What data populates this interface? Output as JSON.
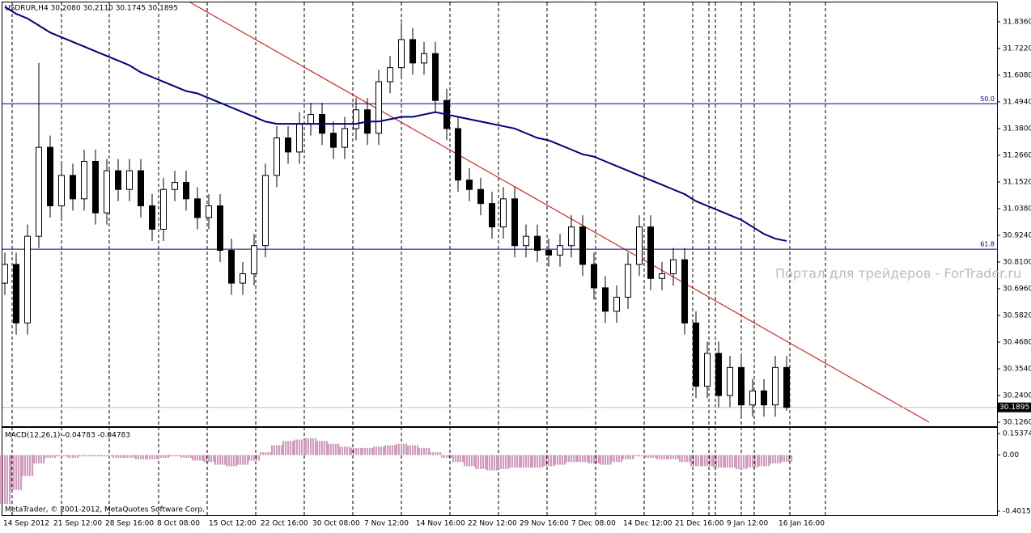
{
  "chart_data": {
    "type": "candlestick",
    "title": "USDRUR,H4  30.2080 30.2110 30.1745 30.1895",
    "watermark": "Портал для трейдеров - ForTrader.ru",
    "footer": "MetaTrader, © 2001-2012, MetaQuotes Software Corp.",
    "time_labels": [
      "14 Sep 2012",
      "21 Sep 12:00",
      "28 Sep 16:00",
      "8 Oct 08:00",
      "15 Oct 12:00",
      "22 Oct 16:00",
      "30 Oct 08:00",
      "7 Nov 12:00",
      "14 Nov 16:00",
      "22 Nov 12:00",
      "29 Nov 16:00",
      "7 Dec 08:00",
      "14 Dec 12:00",
      "21 Dec 16:00",
      "9 Jan 12:00",
      "16 Jan 16:00"
    ],
    "ylim": [
      30.109,
      31.922
    ],
    "yticks": [
      {
        "value": 31.836,
        "label": "31.8360"
      },
      {
        "value": 31.722,
        "label": "31.7220"
      },
      {
        "value": 31.608,
        "label": "31.6080"
      },
      {
        "value": 31.494,
        "label": "31.4940"
      },
      {
        "value": 31.38,
        "label": "31.3800"
      },
      {
        "value": 31.266,
        "label": "31.2660"
      },
      {
        "value": 31.152,
        "label": "31.1520"
      },
      {
        "value": 31.038,
        "label": "31.0380"
      },
      {
        "value": 30.924,
        "label": "30.9240"
      },
      {
        "value": 30.81,
        "label": "30.8100"
      },
      {
        "value": 30.696,
        "label": "30.6960"
      },
      {
        "value": 30.582,
        "label": "30.5820"
      },
      {
        "value": 30.468,
        "label": "30.4680"
      },
      {
        "value": 30.354,
        "label": "30.3540"
      },
      {
        "value": 30.24,
        "label": "30.2400"
      },
      {
        "value": 30.126,
        "label": "30.1260"
      }
    ],
    "levels": [
      {
        "value": 31.486,
        "label": "50.0"
      },
      {
        "value": 30.865,
        "label": "61.8"
      }
    ],
    "level_color": "#00007f",
    "last_price": {
      "value": 30.1895,
      "label": "30.1895"
    },
    "open": [
      30.72,
      30.8,
      30.55,
      30.92,
      31.3,
      31.05,
      31.18,
      31.08,
      31.24,
      31.02,
      31.2,
      31.12,
      31.2,
      31.05,
      30.95,
      31.12,
      31.15,
      31.08,
      31.0,
      31.05,
      30.86,
      30.72,
      30.76,
      30.88,
      31.18,
      31.34,
      31.28,
      31.4,
      31.44,
      31.36,
      31.3,
      31.38,
      31.46,
      31.36,
      31.58,
      31.64,
      31.76,
      31.66,
      31.7,
      31.5,
      31.38,
      31.16,
      31.12,
      31.06,
      30.96,
      31.08,
      30.88,
      30.92,
      30.86,
      30.84,
      30.88,
      30.96,
      30.8,
      30.7,
      30.6,
      30.66,
      30.8,
      30.96,
      30.74,
      30.76,
      30.82,
      30.55,
      30.28,
      30.42,
      30.24,
      30.36,
      30.2,
      30.26,
      30.2,
      30.36
    ],
    "high": [
      30.85,
      30.85,
      30.97,
      31.66,
      31.35,
      31.23,
      31.23,
      31.29,
      31.29,
      31.25,
      31.25,
      31.25,
      31.25,
      31.1,
      31.17,
      31.2,
      31.2,
      31.13,
      31.1,
      31.1,
      30.91,
      30.81,
      30.93,
      31.23,
      31.39,
      31.39,
      31.45,
      31.49,
      31.49,
      31.41,
      31.43,
      31.51,
      31.51,
      31.63,
      31.69,
      31.83,
      31.81,
      31.75,
      31.75,
      31.55,
      31.43,
      31.21,
      31.17,
      31.11,
      31.13,
      31.13,
      30.97,
      30.97,
      30.91,
      30.93,
      31.01,
      31.01,
      30.85,
      30.75,
      30.71,
      30.85,
      31.01,
      31.01,
      30.81,
      30.87,
      30.87,
      30.6,
      30.47,
      30.47,
      30.41,
      30.41,
      30.31,
      30.31,
      30.41,
      30.41
    ],
    "low": [
      30.67,
      30.5,
      30.5,
      30.87,
      31.0,
      31.0,
      31.03,
      31.03,
      30.97,
      30.97,
      31.07,
      31.07,
      31.0,
      30.9,
      30.9,
      31.07,
      31.03,
      30.95,
      30.95,
      30.81,
      30.67,
      30.67,
      30.71,
      30.83,
      31.13,
      31.23,
      31.23,
      31.35,
      31.31,
      31.25,
      31.25,
      31.33,
      31.31,
      31.31,
      31.53,
      31.59,
      31.61,
      31.61,
      31.45,
      31.33,
      31.11,
      31.07,
      31.01,
      30.91,
      30.91,
      30.83,
      30.83,
      30.81,
      30.79,
      30.79,
      30.83,
      30.75,
      30.65,
      30.55,
      30.55,
      30.61,
      30.75,
      30.69,
      30.69,
      30.71,
      30.5,
      30.23,
      30.23,
      30.19,
      30.19,
      30.15,
      30.15,
      30.15,
      30.15,
      30.1745
    ],
    "close": [
      30.8,
      30.55,
      30.92,
      31.3,
      31.05,
      31.18,
      31.08,
      31.24,
      31.02,
      31.2,
      31.12,
      31.2,
      31.05,
      30.95,
      31.12,
      31.15,
      31.08,
      31.0,
      31.05,
      30.86,
      30.72,
      30.76,
      30.88,
      31.18,
      31.34,
      31.28,
      31.4,
      31.44,
      31.36,
      31.3,
      31.38,
      31.46,
      31.36,
      31.58,
      31.64,
      31.76,
      31.66,
      31.7,
      31.5,
      31.38,
      31.16,
      31.12,
      31.06,
      30.96,
      31.08,
      30.88,
      30.92,
      30.86,
      30.84,
      30.88,
      30.96,
      30.8,
      30.7,
      30.6,
      30.66,
      30.8,
      30.96,
      30.74,
      30.76,
      30.82,
      30.55,
      30.28,
      30.42,
      30.24,
      30.36,
      30.2,
      30.26,
      30.2,
      30.36,
      30.1895
    ],
    "ma": {
      "color": "#00007f",
      "values": [
        31.9,
        31.87,
        31.85,
        31.82,
        31.79,
        31.77,
        31.75,
        31.73,
        31.71,
        31.69,
        31.67,
        31.65,
        31.62,
        31.6,
        31.58,
        31.56,
        31.54,
        31.53,
        31.51,
        31.49,
        31.47,
        31.45,
        31.43,
        31.41,
        31.4,
        31.4,
        31.4,
        31.4,
        31.4,
        31.4,
        31.4,
        31.4,
        31.41,
        31.41,
        31.42,
        31.43,
        31.43,
        31.44,
        31.45,
        31.44,
        31.43,
        31.42,
        31.41,
        31.4,
        31.39,
        31.38,
        31.36,
        31.34,
        31.33,
        31.31,
        31.29,
        31.27,
        31.26,
        31.24,
        31.22,
        31.2,
        31.18,
        31.16,
        31.14,
        31.12,
        31.1,
        31.07,
        31.05,
        31.03,
        31.01,
        30.99,
        30.96,
        30.93,
        30.91,
        30.9
      ]
    },
    "macd": {
      "label": "MACD(12,26,1) -0.04783 -0.04783",
      "color": "#b0307a",
      "ylim": [
        -0.40154,
        0.15374
      ],
      "yticks": [
        {
          "value": 0.15374,
          "label": "0.15374"
        },
        {
          "value": 0,
          "label": "0.00"
        },
        {
          "value": -0.40154,
          "label": "-0.40154"
        }
      ],
      "values": [
        -0.35,
        -0.25,
        -0.15,
        -0.06,
        -0.02,
        -0.01,
        -0.02,
        -0.01,
        -0.01,
        -0.01,
        -0.02,
        -0.02,
        -0.03,
        -0.03,
        -0.02,
        -0.01,
        -0.02,
        -0.04,
        -0.05,
        -0.07,
        -0.08,
        -0.07,
        -0.04,
        0.02,
        0.07,
        0.1,
        0.11,
        0.12,
        0.1,
        0.08,
        0.06,
        0.05,
        0.05,
        0.06,
        0.07,
        0.08,
        0.07,
        0.05,
        0.02,
        -0.02,
        -0.05,
        -0.08,
        -0.1,
        -0.11,
        -0.1,
        -0.09,
        -0.09,
        -0.09,
        -0.08,
        -0.07,
        -0.05,
        -0.05,
        -0.06,
        -0.07,
        -0.05,
        -0.03,
        -0.01,
        -0.02,
        -0.03,
        -0.03,
        -0.05,
        -0.08,
        -0.08,
        -0.09,
        -0.09,
        -0.1,
        -0.09,
        -0.08,
        -0.06,
        -0.04783
      ]
    }
  }
}
